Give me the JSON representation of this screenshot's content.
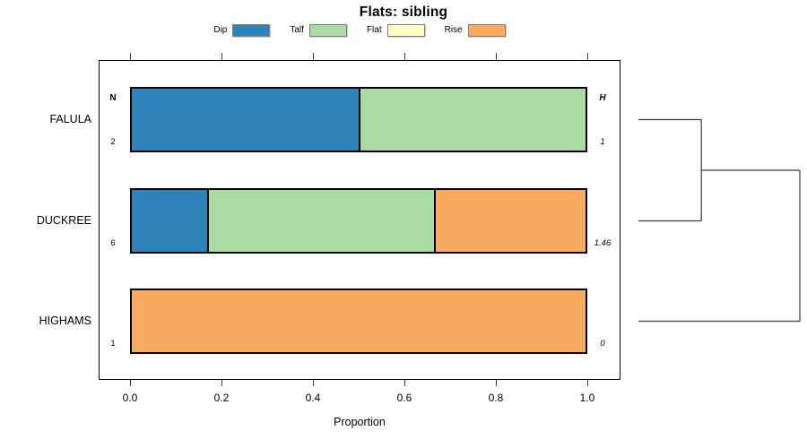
{
  "title": "Flats: sibling",
  "chart_data": {
    "type": "bar",
    "variant": "stacked-horizontal-proportions-with-dendrogram",
    "title": "Flats: sibling",
    "xlabel": "Proportion",
    "xlim": [
      0,
      1
    ],
    "xticks": [
      "0.0",
      "0.2",
      "0.4",
      "0.6",
      "0.8",
      "1.0"
    ],
    "grid": false,
    "legend_position": "top",
    "legend": [
      {
        "label": "Dip",
        "color": "#2e83b8"
      },
      {
        "label": "Talf",
        "color": "#a9dba2"
      },
      {
        "label": "Flat",
        "color": "#fdfdc4"
      },
      {
        "label": "Rise",
        "color": "#fbab60"
      }
    ],
    "columns": {
      "left_header": "N",
      "right_header": "H"
    },
    "rows": [
      {
        "label": "FALULA",
        "n": "2",
        "h": "1",
        "segments": [
          {
            "category": "Dip",
            "value": 0.5
          },
          {
            "category": "Talf",
            "value": 0.5
          }
        ]
      },
      {
        "label": "DUCKREE",
        "n": "6",
        "h": "1.46",
        "segments": [
          {
            "category": "Dip",
            "value": 0.1667
          },
          {
            "category": "Talf",
            "value": 0.5
          },
          {
            "category": "Rise",
            "value": 0.3333
          }
        ]
      },
      {
        "label": "HIGHAMS",
        "n": "1",
        "h": "0",
        "segments": [
          {
            "category": "Rise",
            "value": 1.0
          }
        ]
      }
    ],
    "dendrogram": {
      "leaf_order": [
        "FALULA",
        "DUCKREE",
        "HIGHAMS"
      ],
      "merges": [
        {
          "id": "merge-0",
          "children": [
            "FALULA",
            "DUCKREE"
          ],
          "relative_height": 0.39
        },
        {
          "id": "merge-1",
          "children": [
            "merge-0",
            "HIGHAMS"
          ],
          "relative_height": 1.0
        }
      ]
    }
  }
}
